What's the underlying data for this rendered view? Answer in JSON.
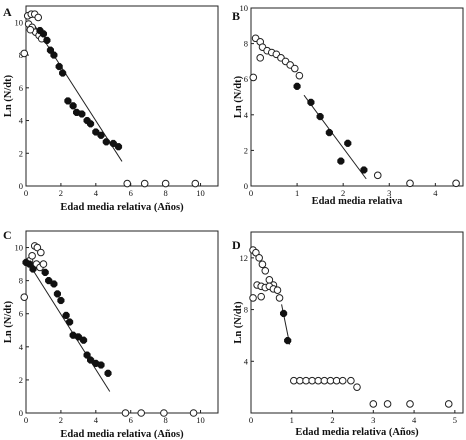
{
  "chart_data": [
    {
      "panel": "A",
      "type": "scatter",
      "xlabel": "Edad media relativa (Años)",
      "ylabel": "Ln (N/dt)",
      "xlim": [
        0,
        11
      ],
      "ylim": [
        0,
        11
      ],
      "xticks": [
        0,
        2,
        4,
        6,
        8,
        10
      ],
      "yticks": [
        0,
        2,
        4,
        6,
        8,
        10
      ],
      "series": [
        {
          "marker": "open",
          "points": [
            [
              -0.1,
              8.1
            ],
            [
              0.1,
              10.4
            ],
            [
              0.3,
              10.5
            ],
            [
              0.5,
              10.5
            ],
            [
              0.7,
              10.3
            ],
            [
              0.15,
              9.9
            ],
            [
              0.35,
              9.7
            ],
            [
              0.55,
              9.4
            ],
            [
              0.75,
              9.2
            ],
            [
              0.9,
              9.0
            ],
            [
              0.25,
              9.55
            ],
            [
              5.8,
              0.15
            ],
            [
              6.8,
              0.15
            ],
            [
              8.0,
              0.15
            ],
            [
              9.7,
              0.15
            ]
          ]
        },
        {
          "marker": "filled",
          "points": [
            [
              0.8,
              9.5
            ],
            [
              1.0,
              9.3
            ],
            [
              1.2,
              8.9
            ],
            [
              1.4,
              8.3
            ],
            [
              1.6,
              8.0
            ],
            [
              1.9,
              7.3
            ],
            [
              2.1,
              6.9
            ],
            [
              2.4,
              5.2
            ],
            [
              2.7,
              4.9
            ],
            [
              2.9,
              4.5
            ],
            [
              3.2,
              4.4
            ],
            [
              3.5,
              4.0
            ],
            [
              3.7,
              3.8
            ],
            [
              4.0,
              3.3
            ],
            [
              4.3,
              3.1
            ],
            [
              4.6,
              2.7
            ],
            [
              5.0,
              2.6
            ],
            [
              5.3,
              2.4
            ]
          ]
        }
      ],
      "fit_line": [
        [
          0.5,
          9.8
        ],
        [
          5.5,
          1.5
        ]
      ]
    },
    {
      "panel": "B",
      "type": "scatter",
      "xlabel": "Edad media relativa",
      "ylabel": "Ln (N/dt)",
      "xlim": [
        0,
        4.6
      ],
      "ylim": [
        0,
        10
      ],
      "xticks": [
        0,
        1,
        2,
        3,
        4
      ],
      "yticks": [
        0,
        2,
        4,
        6,
        8,
        10
      ],
      "series": [
        {
          "marker": "open",
          "points": [
            [
              0.05,
              6.1
            ],
            [
              0.1,
              8.3
            ],
            [
              0.2,
              8.1
            ],
            [
              0.25,
              7.8
            ],
            [
              0.35,
              7.6
            ],
            [
              0.45,
              7.5
            ],
            [
              0.55,
              7.4
            ],
            [
              0.65,
              7.2
            ],
            [
              0.75,
              7.0
            ],
            [
              0.85,
              6.8
            ],
            [
              0.95,
              6.6
            ],
            [
              1.05,
              6.2
            ],
            [
              0.2,
              7.2
            ],
            [
              2.75,
              0.6
            ],
            [
              3.45,
              0.15
            ],
            [
              4.45,
              0.15
            ]
          ]
        },
        {
          "marker": "filled",
          "points": [
            [
              1.0,
              5.6
            ],
            [
              1.3,
              4.7
            ],
            [
              1.5,
              3.9
            ],
            [
              1.7,
              3.0
            ],
            [
              1.95,
              1.4
            ],
            [
              2.1,
              2.4
            ],
            [
              2.45,
              0.9
            ]
          ]
        }
      ],
      "fit_line": [
        [
          1.15,
          5.1
        ],
        [
          2.5,
          0.4
        ]
      ]
    },
    {
      "panel": "C",
      "type": "scatter",
      "xlabel": "Edad media relativa (Años)",
      "ylabel": "Ln (N/dt)",
      "xlim": [
        0,
        11
      ],
      "ylim": [
        0,
        11
      ],
      "xticks": [
        0,
        2,
        4,
        6,
        8,
        10
      ],
      "yticks": [
        0,
        2,
        4,
        6,
        8,
        10
      ],
      "series": [
        {
          "marker": "open",
          "points": [
            [
              -0.1,
              7.0
            ],
            [
              0.2,
              9.2
            ],
            [
              0.35,
              9.5
            ],
            [
              0.5,
              10.1
            ],
            [
              0.65,
              10.0
            ],
            [
              0.85,
              9.7
            ],
            [
              0.6,
              9.0
            ],
            [
              0.8,
              8.8
            ],
            [
              1.0,
              9.0
            ],
            [
              5.7,
              0.0
            ],
            [
              6.6,
              0.0
            ],
            [
              7.9,
              0.0
            ],
            [
              9.6,
              0.0
            ]
          ]
        },
        {
          "marker": "filled",
          "points": [
            [
              0.0,
              9.1
            ],
            [
              0.2,
              9.0
            ],
            [
              0.4,
              8.7
            ],
            [
              1.1,
              8.5
            ],
            [
              1.3,
              8.0
            ],
            [
              1.6,
              7.8
            ],
            [
              1.8,
              7.2
            ],
            [
              2.0,
              6.8
            ],
            [
              2.3,
              5.9
            ],
            [
              2.5,
              5.5
            ],
            [
              2.7,
              4.7
            ],
            [
              3.0,
              4.6
            ],
            [
              3.3,
              4.4
            ],
            [
              3.5,
              3.5
            ],
            [
              3.7,
              3.2
            ],
            [
              4.0,
              3.0
            ],
            [
              4.3,
              2.9
            ],
            [
              4.7,
              2.4
            ]
          ]
        }
      ],
      "fit_line": [
        [
          0.0,
          9.3
        ],
        [
          4.8,
          1.3
        ]
      ]
    },
    {
      "panel": "D",
      "type": "scatter",
      "xlabel": "Edad media relativa (Años)",
      "ylabel": "Ln (N/dt)",
      "xlim": [
        0,
        5.2
      ],
      "ylim": [
        0,
        14
      ],
      "xticks": [
        0,
        1,
        2,
        3,
        4,
        5
      ],
      "yticks": [
        4,
        8,
        12
      ],
      "series": [
        {
          "marker": "open",
          "points": [
            [
              0.05,
              12.6
            ],
            [
              0.12,
              12.4
            ],
            [
              0.2,
              12.0
            ],
            [
              0.28,
              11.5
            ],
            [
              0.35,
              11.0
            ],
            [
              0.45,
              10.3
            ],
            [
              0.55,
              9.9
            ],
            [
              0.05,
              8.9
            ],
            [
              0.15,
              9.9
            ],
            [
              0.25,
              9.8
            ],
            [
              0.35,
              9.7
            ],
            [
              0.45,
              9.8
            ],
            [
              0.55,
              9.6
            ],
            [
              0.65,
              9.5
            ],
            [
              0.7,
              8.9
            ],
            [
              0.25,
              9.0
            ],
            [
              1.05,
              2.5
            ],
            [
              1.2,
              2.5
            ],
            [
              1.35,
              2.5
            ],
            [
              1.5,
              2.5
            ],
            [
              1.65,
              2.5
            ],
            [
              1.8,
              2.5
            ],
            [
              1.95,
              2.5
            ],
            [
              2.1,
              2.5
            ],
            [
              2.25,
              2.5
            ],
            [
              2.45,
              2.5
            ],
            [
              2.6,
              2.0
            ],
            [
              3.0,
              0.7
            ],
            [
              3.35,
              0.7
            ],
            [
              3.9,
              0.7
            ],
            [
              4.85,
              0.7
            ]
          ]
        },
        {
          "marker": "filled",
          "points": [
            [
              0.8,
              7.7
            ],
            [
              0.9,
              5.6
            ]
          ]
        }
      ],
      "fit_line": [
        [
          0.75,
          8.4
        ],
        [
          0.95,
          5.3
        ]
      ]
    }
  ]
}
